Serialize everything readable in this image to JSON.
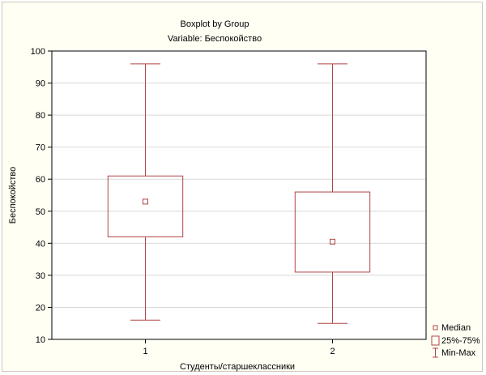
{
  "chart_data": {
    "type": "boxplot",
    "title": "Boxplot by Group",
    "subtitle": "Variable: Беспокойство",
    "xlabel": "Студенты/старшеклассники",
    "ylabel": "Беспокойство",
    "categories": [
      "1",
      "2"
    ],
    "ylim": [
      10,
      100
    ],
    "yticks": [
      10,
      20,
      30,
      40,
      50,
      60,
      70,
      80,
      90,
      100
    ],
    "grid": true,
    "legend_position": "bottom-right",
    "legend": {
      "median": "Median",
      "box": "25%-75%",
      "whisker": "Min-Max"
    },
    "groups": [
      {
        "category": "1",
        "min": 16,
        "q1": 42,
        "median": 53,
        "q3": 61,
        "max": 96
      },
      {
        "category": "2",
        "min": 15,
        "q1": 31,
        "median": 40.5,
        "q3": 56,
        "max": 96
      }
    ],
    "colors": {
      "series": "#b04545",
      "background": "#fffff4",
      "plot_background": "#ffffff",
      "grid": "#d8d8d8"
    }
  }
}
